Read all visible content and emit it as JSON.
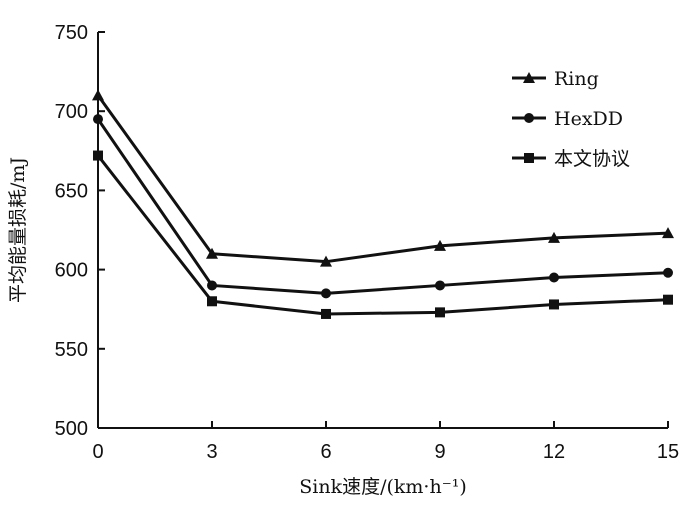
{
  "chart_data": {
    "type": "line",
    "title": "",
    "xlabel": "Sink速度/(km·h⁻¹)",
    "ylabel": "平均能量损耗/mJ",
    "x": [
      0,
      3,
      6,
      9,
      12,
      15
    ],
    "xticks": [
      "0",
      "3",
      "6",
      "9",
      "12",
      "15"
    ],
    "yticks": [
      "500",
      "550",
      "600",
      "650",
      "700",
      "750"
    ],
    "xlim": [
      0,
      15
    ],
    "ylim": [
      500,
      750
    ],
    "grid": false,
    "legend_position": "top-right",
    "series": [
      {
        "name": "Ring",
        "marker": "triangle",
        "values": [
          710,
          610,
          605,
          615,
          620,
          623
        ]
      },
      {
        "name": "HexDD",
        "marker": "circle",
        "values": [
          695,
          590,
          585,
          590,
          595,
          598
        ]
      },
      {
        "name": "本文协议",
        "marker": "square",
        "values": [
          672,
          580,
          572,
          573,
          578,
          581
        ]
      }
    ]
  }
}
